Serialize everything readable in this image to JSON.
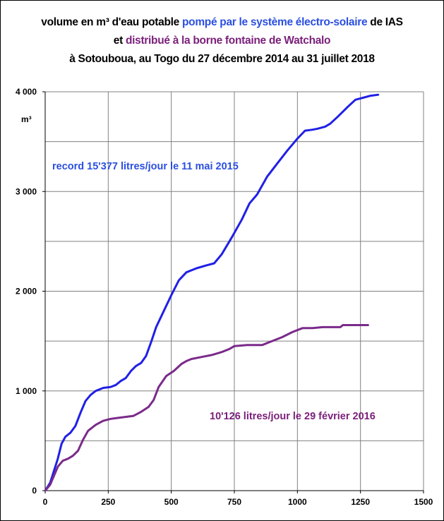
{
  "title": {
    "line1_a": "volume en m³ d'eau potable ",
    "line1_b": "pompé par le système électro-solaire",
    "line1_c": " de IAS",
    "line2_a": "et ",
    "line2_b": "distribué à la borne fontaine de Watchalo",
    "line3": "à Sotouboua, au Togo du 27 décembre 2014 au 31 juillet 2018"
  },
  "colors": {
    "pumped": "#2020e6",
    "distributed": "#7a2a8a",
    "anno_pumped": "#2b4fe0",
    "anno_distributed": "#7a1f7a",
    "grid": "#808080"
  },
  "chart_data": {
    "type": "line",
    "title": "volume en m³ d'eau potable pompé par le système électro-solaire de IAS et distribué à la borne fontaine de Watchalo à Sotouboua, au Togo du 27 décembre 2014 au 31 juillet 2018",
    "xlabel": "",
    "ylabel": "m³",
    "xlim": [
      0,
      1500
    ],
    "ylim": [
      0,
      4000
    ],
    "x_ticks": [
      0,
      250,
      500,
      750,
      1000,
      1250,
      1500
    ],
    "y_ticks": [
      0,
      1000,
      2000,
      3000,
      4000
    ],
    "x_tick_labels": [
      "0",
      "250",
      "500",
      "750",
      "1000",
      "1250",
      "1500"
    ],
    "y_tick_labels": [
      "0",
      "1 000",
      "2 000",
      "3 000",
      "4 000"
    ],
    "grid": true,
    "legend": "none",
    "series": [
      {
        "name": "pompé par le système électro-solaire",
        "x": [
          0,
          10,
          20,
          30,
          50,
          65,
          80,
          100,
          120,
          140,
          160,
          180,
          200,
          230,
          260,
          280,
          300,
          320,
          340,
          360,
          380,
          400,
          420,
          440,
          470,
          500,
          530,
          560,
          600,
          640,
          670,
          700,
          740,
          780,
          810,
          840,
          880,
          920,
          960,
          1000,
          1030,
          1060,
          1080,
          1110,
          1130,
          1160,
          1200,
          1230,
          1260,
          1290,
          1320
        ],
        "values": [
          0,
          40,
          80,
          160,
          320,
          470,
          540,
          580,
          650,
          780,
          900,
          960,
          1000,
          1030,
          1040,
          1060,
          1100,
          1130,
          1200,
          1250,
          1280,
          1350,
          1490,
          1640,
          1800,
          1960,
          2110,
          2190,
          2230,
          2260,
          2280,
          2370,
          2540,
          2720,
          2880,
          2970,
          3150,
          3280,
          3410,
          3530,
          3610,
          3620,
          3630,
          3650,
          3680,
          3750,
          3850,
          3920,
          3940,
          3960,
          3970
        ]
      },
      {
        "name": "distribué à la borne fontaine de Watchalo",
        "x": [
          0,
          10,
          20,
          30,
          50,
          70,
          90,
          110,
          130,
          150,
          170,
          200,
          230,
          260,
          290,
          320,
          350,
          380,
          410,
          430,
          450,
          480,
          510,
          540,
          560,
          580,
          620,
          660,
          700,
          730,
          750,
          800,
          860,
          900,
          940,
          980,
          1020,
          1060,
          1100,
          1140,
          1170,
          1180,
          1220,
          1250,
          1280
        ],
        "values": [
          0,
          30,
          60,
          120,
          240,
          300,
          320,
          350,
          400,
          510,
          600,
          660,
          700,
          720,
          730,
          740,
          750,
          790,
          840,
          910,
          1040,
          1150,
          1200,
          1270,
          1300,
          1320,
          1340,
          1360,
          1390,
          1420,
          1450,
          1460,
          1460,
          1500,
          1540,
          1590,
          1630,
          1630,
          1640,
          1640,
          1640,
          1660,
          1660,
          1660,
          1660
        ]
      }
    ],
    "annotations": [
      {
        "text": "record 15'377 litres/jour le 11 mai 2015"
      },
      {
        "text": "10'126 litres/jour le 29 février 2016"
      }
    ]
  }
}
